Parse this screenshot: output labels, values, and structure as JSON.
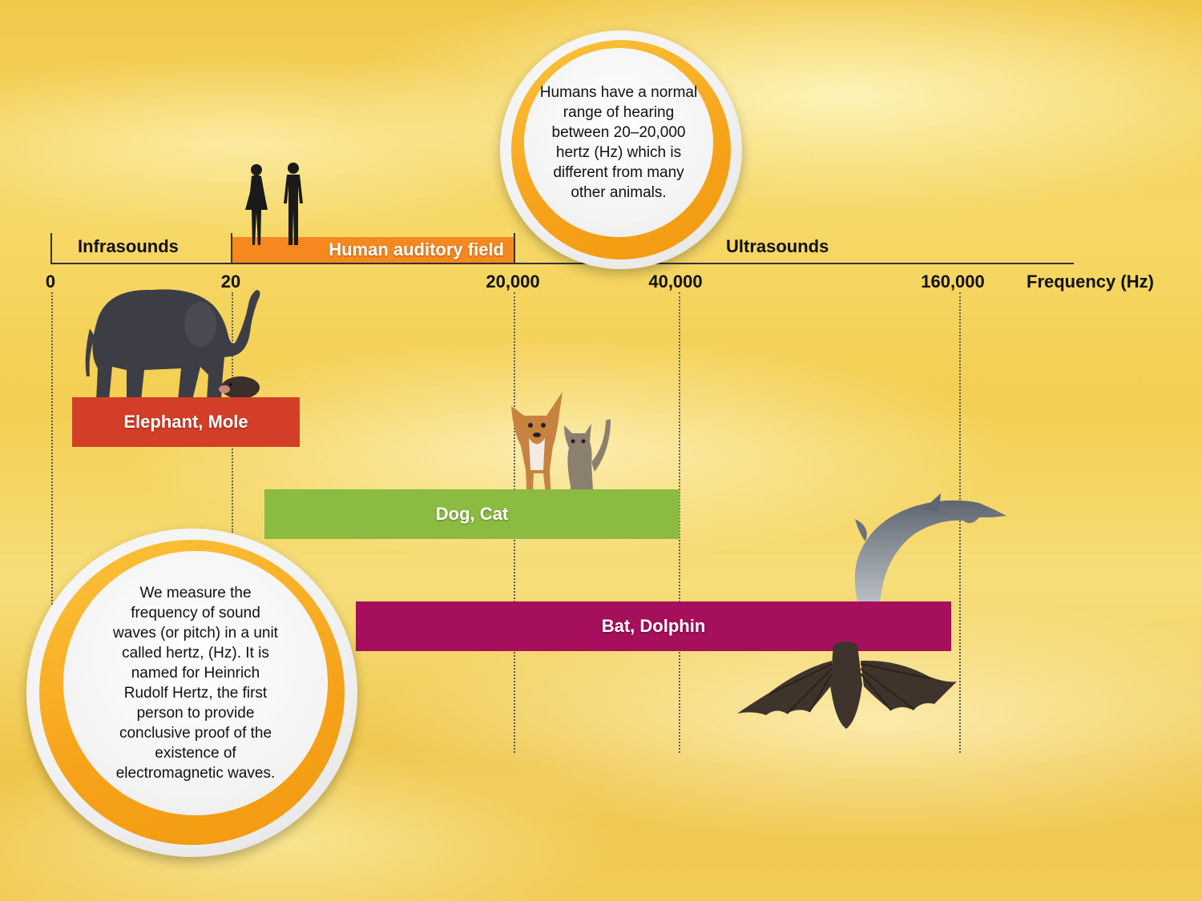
{
  "axis": {
    "infrasounds": "Infrasounds",
    "human_field": "Human auditory field",
    "ultrasounds": "Ultrasounds",
    "frequency_label": "Frequency (Hz)",
    "ticks": [
      "0",
      "20",
      "20,000",
      "40,000",
      "160,000"
    ]
  },
  "bands": [
    {
      "label": "Elephant, Mole",
      "color": "#d23e28"
    },
    {
      "label": "Dog, Cat",
      "color": "#8bbb41"
    },
    {
      "label": "Bat, Dolphin",
      "color": "#a50f5b"
    }
  ],
  "colors": {
    "human_field": "#f5891f",
    "ring": "#f6a21a"
  },
  "bubbles": {
    "human": "Humans have a normal range of hearing between 20–20,000 hertz (Hz) which is different from many other animals.",
    "hertz": "We measure the frequency of sound waves (or pitch) in a unit called hertz, (Hz). It is named for Heinrich Rudolf Hertz, the first person to provide conclusive proof of the existence of electromagnetic waves."
  },
  "icons": [
    "human-silhouettes-icon",
    "elephant-icon",
    "mole-icon",
    "dog-icon",
    "cat-icon",
    "dolphin-icon",
    "bat-icon"
  ]
}
